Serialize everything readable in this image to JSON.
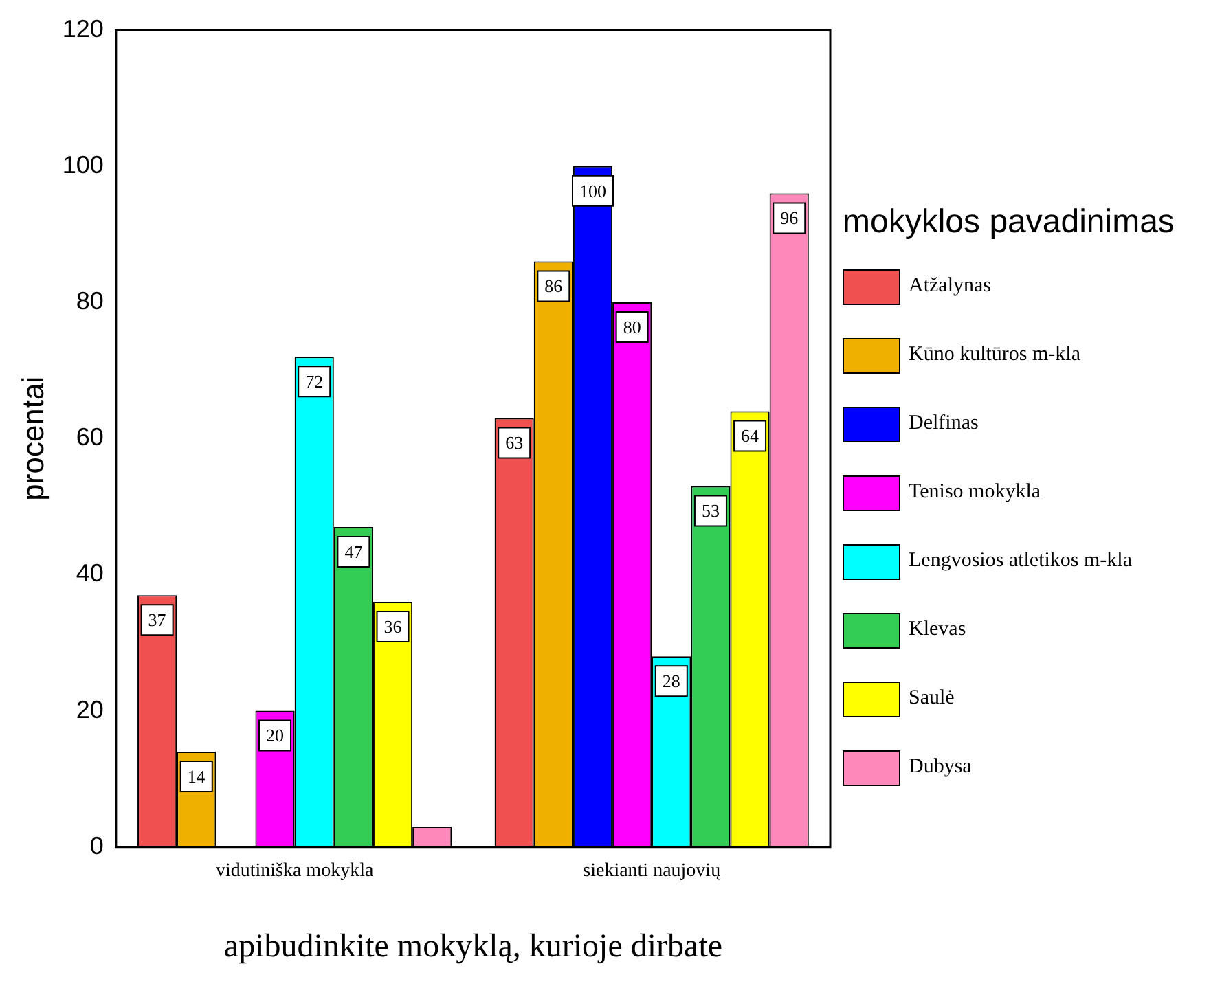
{
  "chart_data": {
    "type": "bar",
    "xlabel": "apibudinkite mokyklą, kurioje dirbate",
    "ylabel": "procentai",
    "legend_title": "mokyklos pavadinimas",
    "legend": "right",
    "grid": false,
    "categories": [
      "vidutiniška mokykla",
      "siekianti naujovių"
    ],
    "ylim": [
      0,
      120
    ],
    "yticks": [
      0,
      20,
      40,
      60,
      80,
      100,
      120
    ],
    "series": [
      {
        "name": "Atžalynas",
        "color": "#f05050",
        "values": [
          37,
          63
        ],
        "value_labels": [
          "37",
          "63"
        ]
      },
      {
        "name": "Kūno kultūros m-kla",
        "color": "#f0b000",
        "values": [
          14,
          86
        ],
        "value_labels": [
          "14",
          "86"
        ]
      },
      {
        "name": "Delfinas",
        "color": "#0000ff",
        "values": [
          null,
          100
        ],
        "value_labels": [
          null,
          "100"
        ]
      },
      {
        "name": "Teniso mokykla",
        "color": "#ff00ff",
        "values": [
          20,
          80
        ],
        "value_labels": [
          "20",
          "80"
        ]
      },
      {
        "name": "Lengvosios atletikos m-kla",
        "color": "#00ffff",
        "values": [
          72,
          28
        ],
        "value_labels": [
          "72",
          "28"
        ]
      },
      {
        "name": "Klevas",
        "color": "#33cc55",
        "values": [
          47,
          53
        ],
        "value_labels": [
          "47",
          "53"
        ]
      },
      {
        "name": "Saulė",
        "color": "#ffff00",
        "values": [
          36,
          64
        ],
        "value_labels": [
          "36",
          "64"
        ]
      },
      {
        "name": "Dubysa",
        "color": "#ff88bb",
        "values": [
          3,
          96
        ],
        "value_labels": [
          null,
          "96"
        ]
      }
    ]
  }
}
